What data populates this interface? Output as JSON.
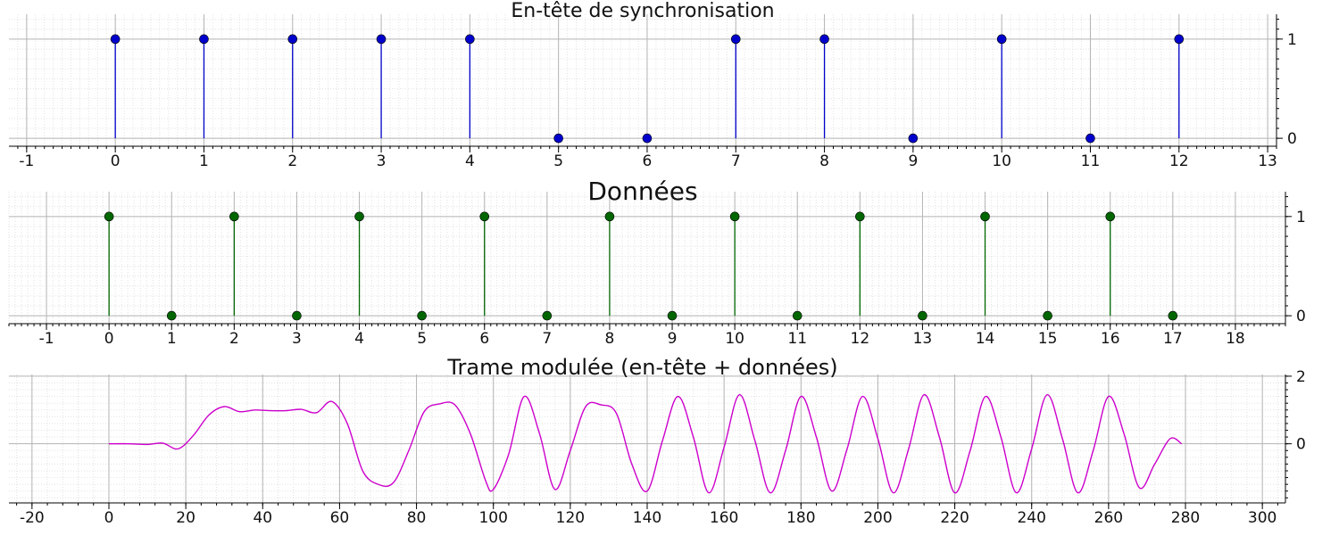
{
  "chart_data": [
    {
      "type": "stem",
      "title": "En-tête de synchronisation",
      "color": "#0000cc",
      "x": [
        0,
        1,
        2,
        3,
        4,
        5,
        6,
        7,
        8,
        9,
        10,
        11,
        12
      ],
      "values": [
        1,
        1,
        1,
        1,
        1,
        0,
        0,
        1,
        1,
        0,
        1,
        0,
        1
      ],
      "xlim": [
        -1.2,
        13.1
      ],
      "ylim": [
        -0.08,
        1.25
      ],
      "xticks": [
        -1,
        0,
        1,
        2,
        3,
        4,
        5,
        6,
        7,
        8,
        9,
        10,
        11,
        12,
        13
      ],
      "yticks": [
        0,
        1
      ],
      "grid": true
    },
    {
      "type": "stem",
      "title": "Données",
      "color": "#006600",
      "x": [
        0,
        1,
        2,
        3,
        4,
        5,
        6,
        7,
        8,
        9,
        10,
        11,
        12,
        13,
        14,
        15,
        16,
        17
      ],
      "values": [
        1,
        0,
        1,
        0,
        1,
        0,
        1,
        0,
        1,
        0,
        1,
        0,
        1,
        0,
        1,
        0,
        1,
        0
      ],
      "xlim": [
        -1.6,
        18.8
      ],
      "ylim": [
        -0.08,
        1.25
      ],
      "xticks": [
        -1,
        0,
        1,
        2,
        3,
        4,
        5,
        6,
        7,
        8,
        9,
        10,
        11,
        12,
        13,
        14,
        15,
        16,
        17,
        18
      ],
      "yticks": [
        0,
        1
      ],
      "grid": true
    },
    {
      "type": "line",
      "title": "Trame modulée (en-tête + données)",
      "color": "#cc00cc",
      "x": [
        0,
        5,
        10,
        14,
        18,
        22,
        26,
        30,
        34,
        38,
        42,
        46,
        50,
        54,
        58,
        62,
        66,
        70,
        74,
        78,
        82,
        86,
        90,
        94,
        98,
        100,
        104,
        108,
        112,
        116,
        120,
        124,
        128,
        132,
        136,
        140,
        144,
        148,
        152,
        156,
        160,
        164,
        168,
        172,
        176,
        180,
        184,
        188,
        192,
        196,
        200,
        204,
        208,
        212,
        216,
        220,
        224,
        228,
        232,
        236,
        240,
        244,
        248,
        252,
        256,
        260,
        264,
        268,
        272,
        276,
        279
      ],
      "values": [
        0,
        0,
        -0.02,
        0.02,
        -0.15,
        0.25,
        0.85,
        1.1,
        0.95,
        1.0,
        0.98,
        0.98,
        1.02,
        0.92,
        1.25,
        0.6,
        -0.8,
        -1.2,
        -1.15,
        -0.2,
        0.95,
        1.18,
        1.15,
        0.3,
        -1.1,
        -1.35,
        -0.3,
        1.4,
        0.3,
        -1.35,
        -0.2,
        1.1,
        1.15,
        0.9,
        -0.6,
        -1.4,
        0.1,
        1.4,
        0.2,
        -1.45,
        -0.1,
        1.45,
        0.1,
        -1.45,
        -0.2,
        1.4,
        0.2,
        -1.4,
        -0.15,
        1.4,
        0.15,
        -1.45,
        -0.15,
        1.45,
        0.2,
        -1.45,
        -0.2,
        1.4,
        0.2,
        -1.45,
        -0.15,
        1.45,
        0.15,
        -1.45,
        -0.2,
        1.4,
        0.3,
        -1.3,
        -0.6,
        0.15,
        0.0
      ],
      "xlim": [
        -26,
        306
      ],
      "ylim": [
        -1.75,
        2.05
      ],
      "xticks": [
        -20,
        0,
        20,
        40,
        60,
        80,
        100,
        120,
        140,
        160,
        180,
        200,
        220,
        240,
        260,
        280,
        300
      ],
      "yticks": [
        0,
        2
      ],
      "grid": true
    }
  ]
}
